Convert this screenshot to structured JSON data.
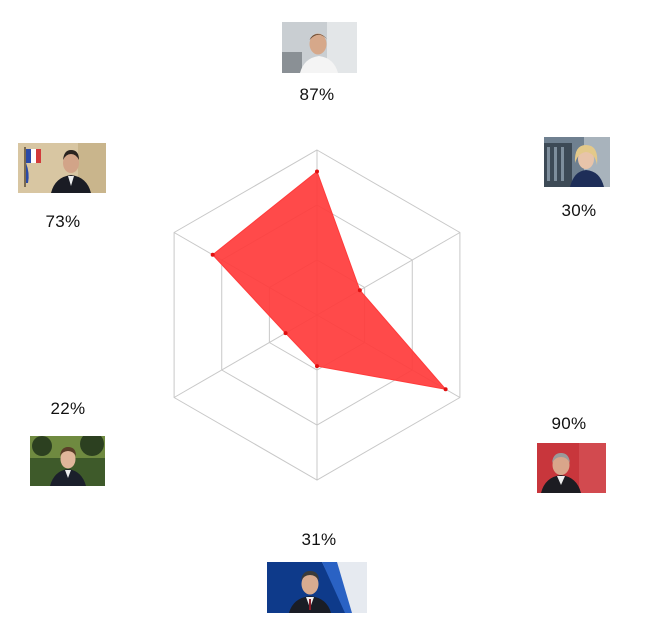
{
  "chart_data": {
    "type": "radar",
    "title": "",
    "max": 100,
    "grid_levels": 3,
    "fill_color": "#ff3b3b",
    "grid_color": "#c8c8c8",
    "categories": [
      {
        "label": "87%",
        "value": 87,
        "image": "portrait-man-white-shirt"
      },
      {
        "label": "30%",
        "value": 30,
        "image": "portrait-woman-blonde"
      },
      {
        "label": "90%",
        "value": 90,
        "image": "portrait-man-red-background"
      },
      {
        "label": "31%",
        "value": 31,
        "image": "portrait-man-tv-studio"
      },
      {
        "label": "22%",
        "value": 22,
        "image": "portrait-man-garden"
      },
      {
        "label": "73%",
        "value": 73,
        "image": "portrait-man-flags"
      }
    ]
  }
}
